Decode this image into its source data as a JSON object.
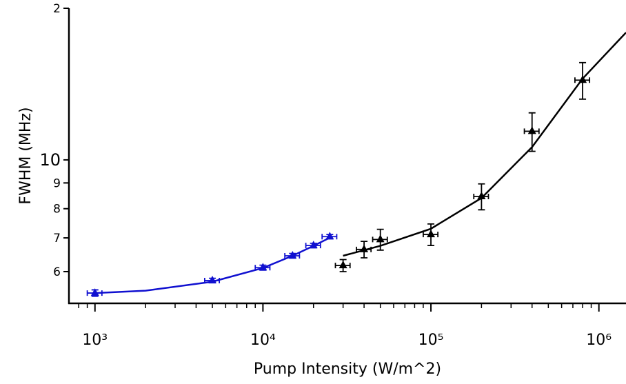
{
  "chart_data": {
    "type": "scatter",
    "xlabel": "Pump Intensity (W/m^2)",
    "ylabel": "FWHM (MHz)",
    "xscale": "log",
    "yscale": "log",
    "xlim": [
      700,
      1450000
    ],
    "ylim": [
      5.19,
      20
    ],
    "xticks": [
      {
        "value": 1000,
        "label": "10³"
      },
      {
        "value": 10000,
        "label": "10⁴"
      },
      {
        "value": 100000,
        "label": "10⁵"
      },
      {
        "value": 1000000,
        "label": "10⁶"
      }
    ],
    "xminorticks": [
      800,
      900,
      2000,
      3000,
      4000,
      5000,
      6000,
      7000,
      8000,
      9000,
      20000,
      30000,
      40000,
      50000,
      60000,
      70000,
      80000,
      90000,
      200000,
      300000,
      400000,
      500000,
      600000,
      700000,
      800000,
      900000
    ],
    "yticks": [
      6,
      7,
      8,
      9,
      10,
      {
        "value": 20,
        "label": "2"
      }
    ],
    "series": [
      {
        "color": "#1010d0",
        "x": [
          1000,
          5000,
          10000,
          15000,
          20000,
          25000
        ],
        "values": [
          5.44,
          5.76,
          6.11,
          6.45,
          6.76,
          7.04
        ],
        "yerr": [
          0.08,
          0.06,
          0.07,
          0.07,
          0.07,
          0.07
        ],
        "xerr": [
          100,
          500,
          1000,
          1500,
          2000,
          2500
        ],
        "fit": {
          "x": [
            1000,
            2000,
            5000,
            10000,
            15000,
            20000,
            26000
          ],
          "values": [
            5.44,
            5.5,
            5.73,
            6.1,
            6.45,
            6.75,
            7.05
          ]
        }
      },
      {
        "color": "#000000",
        "x": [
          30000,
          40000,
          50000,
          100000,
          200000,
          400000,
          800000
        ],
        "values": [
          6.17,
          6.64,
          6.95,
          7.11,
          8.46,
          11.4,
          14.4
        ],
        "yerr": [
          0.17,
          0.25,
          0.33,
          0.35,
          0.5,
          1.0,
          1.2
        ],
        "xerr": [
          3000,
          4000,
          5000,
          10000,
          20000,
          40000,
          80000
        ],
        "fit": {
          "x": [
            30000,
            50000,
            100000,
            200000,
            400000,
            800000,
            1450000
          ],
          "values": [
            6.45,
            6.75,
            7.3,
            8.4,
            10.6,
            14.5,
            17.9
          ]
        }
      }
    ]
  }
}
